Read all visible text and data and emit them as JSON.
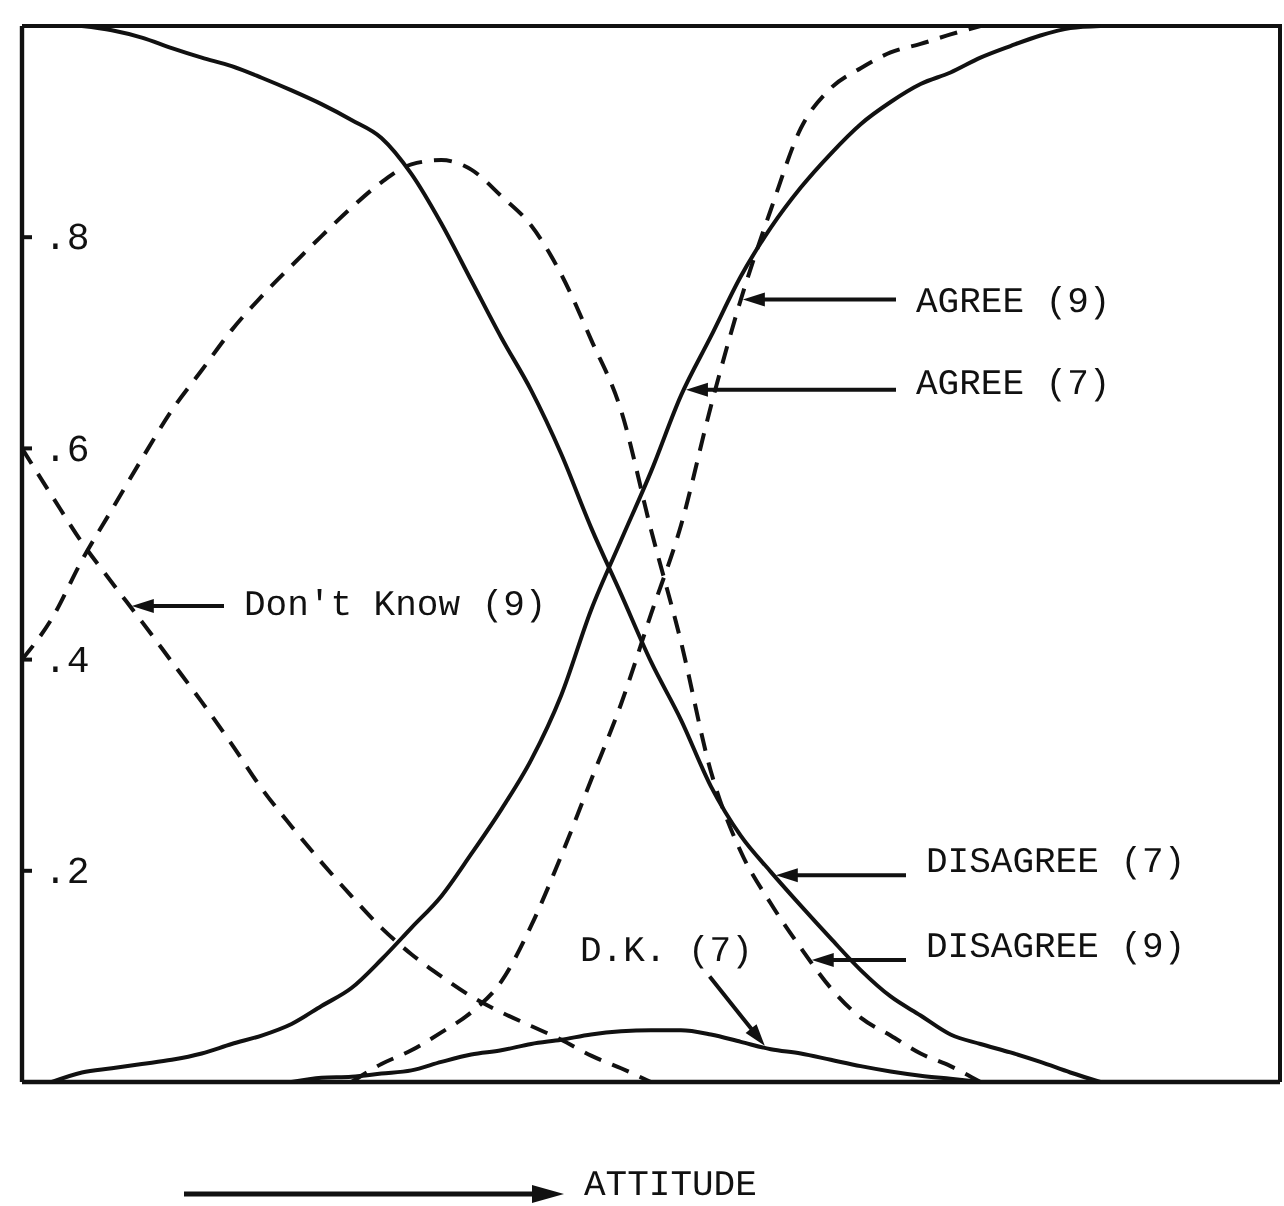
{
  "chart_data": {
    "type": "line",
    "categories": [
      null,
      null,
      null,
      null,
      null,
      null,
      null,
      null,
      null,
      null,
      null,
      null,
      null,
      null,
      null,
      null,
      null,
      null,
      null,
      null,
      null,
      null,
      null,
      null,
      null,
      null,
      null,
      null,
      null,
      null,
      null,
      null,
      null,
      null,
      null,
      null,
      null,
      null,
      null,
      null,
      null,
      null,
      null
    ],
    "xlabel": "ATTITUDE",
    "ylim": [
      0,
      1
    ],
    "yticks": [
      {
        "value": 0.2,
        "label": ".2"
      },
      {
        "value": 0.4,
        "label": ".4"
      },
      {
        "value": 0.6,
        "label": ".6"
      },
      {
        "value": 0.8,
        "label": ".8"
      }
    ],
    "series": [
      {
        "color": "#111111",
        "line_style": "dashed",
        "values": [
          null,
          null,
          null,
          null,
          null,
          null,
          null,
          null,
          null,
          null,
          null,
          0,
          0.017,
          0.03,
          0.047,
          0.066,
          0.095,
          0.148,
          0.214,
          0.286,
          0.358,
          0.443,
          0.527,
          0.64,
          0.741,
          0.826,
          0.903,
          0.941,
          0.96,
          0.975,
          0.983,
          0.992,
          1.0,
          null,
          null,
          null,
          null,
          null,
          null,
          null,
          null,
          null,
          null
        ]
      },
      {
        "color": "#111111",
        "line_style": "solid",
        "values": [
          null,
          0,
          0.009,
          0.013,
          0.017,
          0.021,
          0.027,
          0.036,
          0.044,
          0.055,
          0.072,
          0.089,
          0.116,
          0.146,
          0.176,
          0.216,
          0.258,
          0.305,
          0.366,
          0.447,
          0.513,
          0.578,
          0.65,
          0.706,
          0.763,
          0.809,
          0.847,
          0.879,
          0.907,
          0.928,
          0.945,
          0.956,
          0.97,
          0.981,
          0.991,
          0.998,
          1.0,
          null,
          null,
          null,
          null,
          null,
          null
        ]
      },
      {
        "color": "#111111",
        "line_style": "dashed",
        "values": [
          0.6,
          0.555,
          0.511,
          0.473,
          0.436,
          0.398,
          0.36,
          0.32,
          0.278,
          0.242,
          0.208,
          0.176,
          0.146,
          0.121,
          0.1,
          0.081,
          0.066,
          0.053,
          0.04,
          0.025,
          0.013,
          0,
          null,
          null,
          null,
          null,
          null,
          null,
          null,
          null,
          null,
          null,
          null,
          null,
          null,
          null,
          null,
          null,
          null,
          null,
          null,
          null,
          null
        ]
      },
      {
        "color": "#111111",
        "line_style": "solid",
        "values": [
          null,
          null,
          1.0,
          0.996,
          0.989,
          0.979,
          0.97,
          0.962,
          0.951,
          0.939,
          0.926,
          0.911,
          0.894,
          0.86,
          0.813,
          0.759,
          0.705,
          0.655,
          0.595,
          0.525,
          0.462,
          0.398,
          0.343,
          0.28,
          0.233,
          0.199,
          0.167,
          0.136,
          0.106,
          0.081,
          0.063,
          0.045,
          0.036,
          0.028,
          0.019,
          0.009,
          0,
          null,
          null,
          null,
          null,
          null,
          null
        ]
      },
      {
        "color": "#111111",
        "line_style": "dashed",
        "values": [
          0.4,
          0.439,
          0.494,
          0.542,
          0.59,
          0.636,
          0.674,
          0.712,
          0.744,
          0.773,
          0.801,
          0.828,
          0.852,
          0.869,
          0.873,
          0.864,
          0.839,
          0.811,
          0.765,
          0.703,
          0.636,
          0.523,
          0.417,
          0.294,
          0.218,
          0.169,
          0.127,
          0.089,
          0.061,
          0.044,
          0.027,
          0.015,
          0,
          null,
          null,
          null,
          null,
          null,
          null,
          null,
          null,
          null,
          null
        ]
      },
      {
        "color": "#111111",
        "line_style": "solid",
        "values": [
          null,
          null,
          null,
          null,
          null,
          null,
          null,
          null,
          null,
          0,
          0.004,
          0.005,
          0.008,
          0.011,
          0.019,
          0.026,
          0.03,
          0.036,
          0.04,
          0.045,
          0.048,
          0.049,
          0.049,
          0.045,
          0.038,
          0.031,
          0.027,
          0.021,
          0.015,
          0.01,
          0.006,
          0.003,
          0,
          null,
          null,
          null,
          null,
          null,
          null,
          null,
          null,
          null,
          null
        ]
      }
    ],
    "annotations": [
      "AGREE (9)",
      "AGREE (7)",
      "Don't Know (9)",
      "DISAGREE (7)",
      "DISAGREE (9)",
      "D.K. (7)"
    ]
  }
}
